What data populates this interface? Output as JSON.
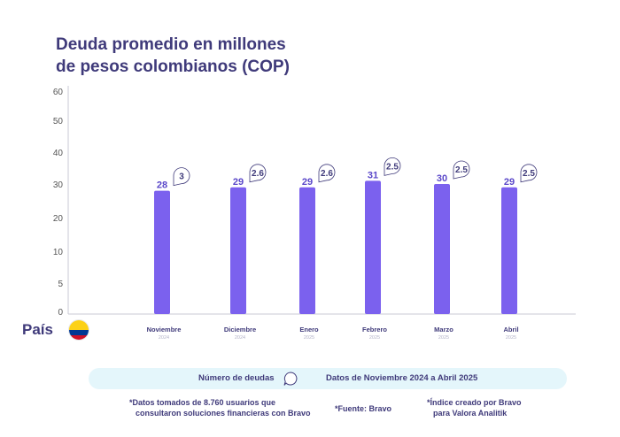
{
  "chart_data": {
    "type": "bar",
    "title": [
      "Deuda promedio en millones",
      "de pesos colombianos (COP)"
    ],
    "categories": [
      "Noviembre",
      "Diciembre",
      "Enero",
      "Febrero",
      "Marzo",
      "Abril"
    ],
    "category_years": [
      "2024",
      "2024",
      "2025",
      "2025",
      "2025",
      "2025"
    ],
    "values": [
      28,
      29,
      29,
      31,
      30,
      29
    ],
    "debt_index": [
      "3",
      "2.6",
      "2.6",
      "2.5",
      "2.5",
      "2.5"
    ],
    "ylim": [
      0,
      60
    ],
    "yticks": [
      0,
      5,
      10,
      20,
      30,
      40,
      50,
      60
    ],
    "bar_color": "#7b61ee",
    "label_color": "#5a47c9",
    "grid": false
  },
  "country_label": "País",
  "banner": {
    "label": "Número de deudas",
    "range": "Datos de Noviembre 2024 a Abril 2025"
  },
  "notes": {
    "source_line1": "*Datos tomados de 8.760 usuarios que",
    "source_line2": "consultaron soluciones financieras con Bravo",
    "fuente": "*Fuente: Bravo",
    "index_line1": "*Índice creado por Bravo",
    "index_line2": "para Valora Analitik"
  }
}
